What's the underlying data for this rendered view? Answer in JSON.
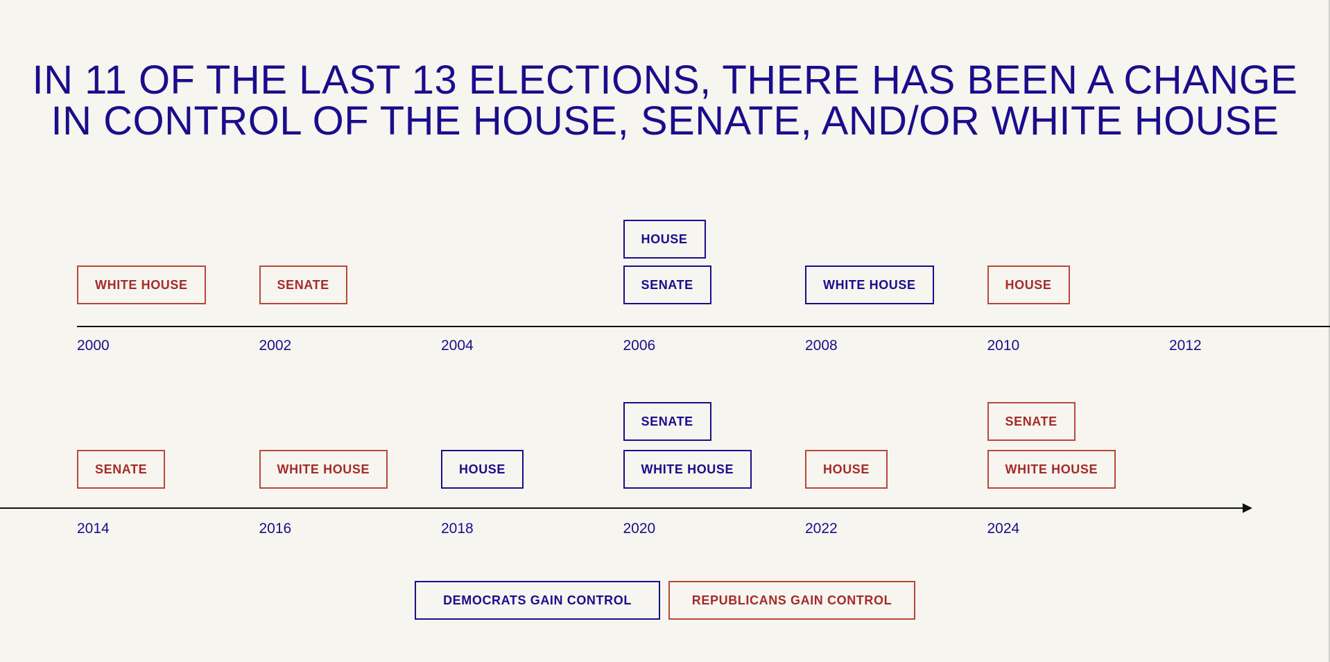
{
  "title": {
    "line1": "IN 11 OF THE LAST 13 ELECTIONS, THERE HAS BEEN A CHANGE",
    "line2": "IN CONTROL OF THE HOUSE, SENATE, AND/OR WHITE HOUSE"
  },
  "colors": {
    "democrat": "#1a0d8c",
    "republican": "#b8473a",
    "background": "#f6f5ef"
  },
  "rows": [
    {
      "years": [
        "2000",
        "2002",
        "2004",
        "2006",
        "2008",
        "2010",
        "2012"
      ],
      "events": [
        {
          "year": "2000",
          "changes": [
            {
              "label": "WHITE HOUSE",
              "party": "rep"
            }
          ]
        },
        {
          "year": "2002",
          "changes": [
            {
              "label": "SENATE",
              "party": "rep"
            }
          ]
        },
        {
          "year": "2006",
          "changes": [
            {
              "label": "SENATE",
              "party": "dem"
            },
            {
              "label": "HOUSE",
              "party": "dem"
            }
          ]
        },
        {
          "year": "2008",
          "changes": [
            {
              "label": "WHITE HOUSE",
              "party": "dem"
            }
          ]
        },
        {
          "year": "2010",
          "changes": [
            {
              "label": "HOUSE",
              "party": "rep"
            }
          ]
        }
      ]
    },
    {
      "years": [
        "2014",
        "2016",
        "2018",
        "2020",
        "2022",
        "2024"
      ],
      "events": [
        {
          "year": "2014",
          "changes": [
            {
              "label": "SENATE",
              "party": "rep"
            }
          ]
        },
        {
          "year": "2016",
          "changes": [
            {
              "label": "WHITE HOUSE",
              "party": "rep"
            }
          ]
        },
        {
          "year": "2018",
          "changes": [
            {
              "label": "HOUSE",
              "party": "dem"
            }
          ]
        },
        {
          "year": "2020",
          "changes": [
            {
              "label": "WHITE HOUSE",
              "party": "dem"
            },
            {
              "label": "SENATE",
              "party": "dem"
            }
          ]
        },
        {
          "year": "2022",
          "changes": [
            {
              "label": "HOUSE",
              "party": "rep"
            }
          ]
        },
        {
          "year": "2024",
          "changes": [
            {
              "label": "WHITE HOUSE",
              "party": "rep"
            },
            {
              "label": "SENATE",
              "party": "rep"
            }
          ]
        }
      ]
    }
  ],
  "legend": {
    "democrats": "DEMOCRATS GAIN CONTROL",
    "republicans": "REPUBLICANS GAIN CONTROL"
  }
}
